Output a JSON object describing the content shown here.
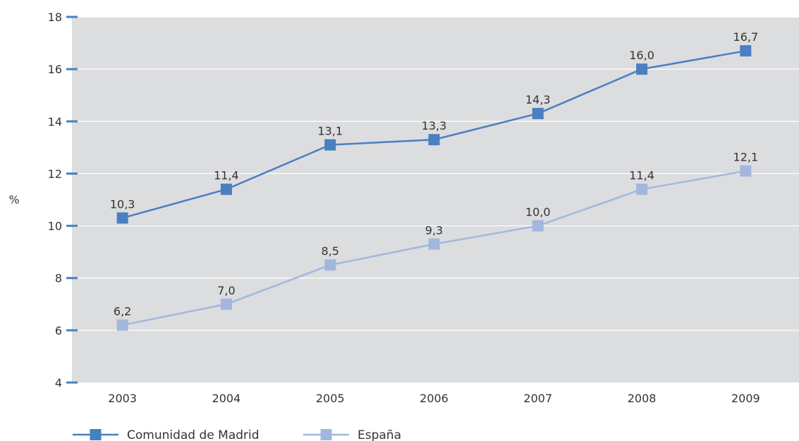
{
  "chart_data": {
    "type": "line",
    "title": "",
    "xlabel": "",
    "ylabel": "%",
    "categories": [
      "2003",
      "2004",
      "2005",
      "2006",
      "2007",
      "2008",
      "2009"
    ],
    "ylim": [
      4,
      18
    ],
    "yticks": [
      4,
      6,
      8,
      10,
      12,
      14,
      16,
      18
    ],
    "grid": true,
    "legend_position": "bottom-left",
    "background_color": "#dcdddf",
    "series": [
      {
        "name": "Comunidad de Madrid",
        "color": "#4a7fc1",
        "values": [
          10.3,
          11.4,
          13.1,
          13.3,
          14.3,
          16.0,
          16.7
        ],
        "labels": [
          "10,3",
          "11,4",
          "13,1",
          "13,3",
          "14,3",
          "16,0",
          "16,7"
        ]
      },
      {
        "name": "España",
        "color": "#a3b7dd",
        "values": [
          6.2,
          7.0,
          8.5,
          9.3,
          10.0,
          11.4,
          12.1
        ],
        "labels": [
          "6,2",
          "7,0",
          "8,5",
          "9,3",
          "10,0",
          "11,4",
          "12,1"
        ]
      }
    ]
  }
}
